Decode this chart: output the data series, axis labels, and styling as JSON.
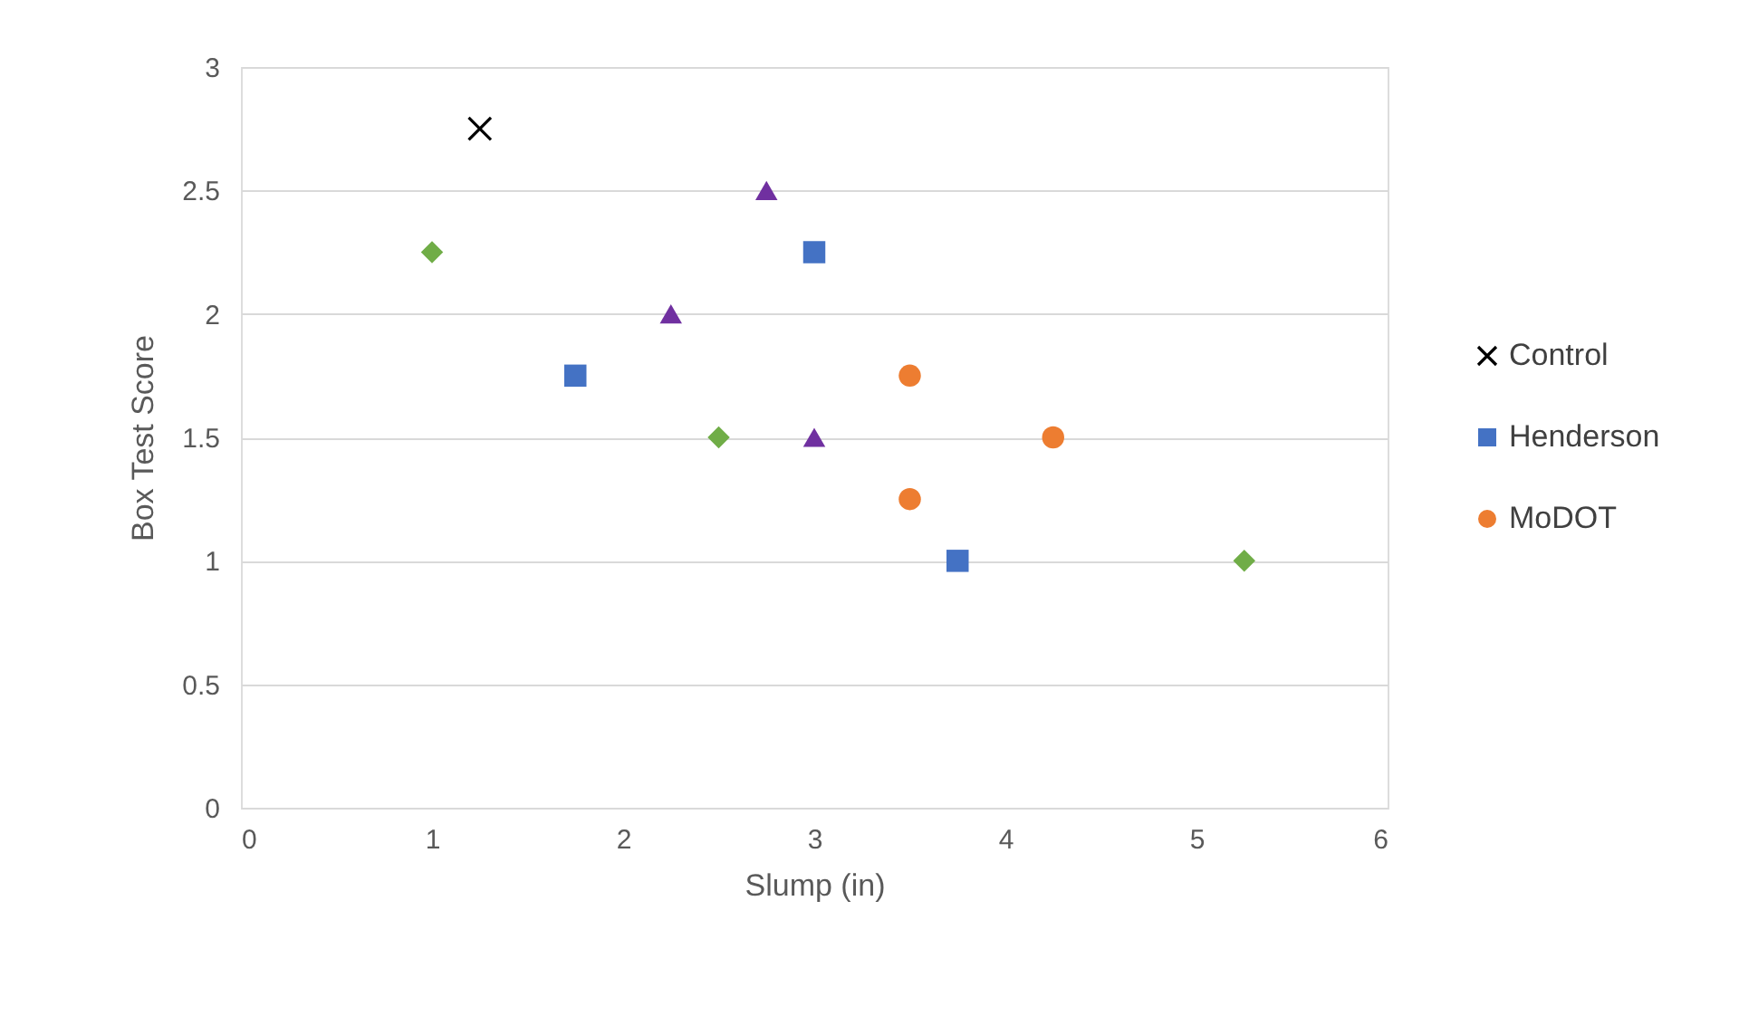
{
  "chart_data": {
    "type": "scatter",
    "xlabel": "Slump (in)",
    "ylabel": "Box Test Score",
    "xlim": [
      0,
      6
    ],
    "xticks": [
      0,
      1,
      2,
      3,
      4,
      5,
      6
    ],
    "ylim": [
      0,
      3
    ],
    "yticks": [
      0,
      0.5,
      1,
      1.5,
      2,
      2.5,
      3
    ],
    "grid": "y",
    "legend": "right",
    "series": [
      {
        "name": "Control",
        "color": "#000000",
        "marker": "cross",
        "x": [
          1.25
        ],
        "values": [
          2.75
        ]
      },
      {
        "name": "Henderson",
        "color": "#4472c4",
        "marker": "square",
        "x": [
          1.75,
          3,
          3.75
        ],
        "values": [
          1.75,
          2.25,
          1
        ]
      },
      {
        "color": "#70ad47",
        "marker": "diamond",
        "x": [
          1,
          2.5,
          5.25
        ],
        "values": [
          2.25,
          1.5,
          1
        ]
      },
      {
        "color": "#7030a0",
        "marker": "triangle",
        "x": [
          2.25,
          2.75,
          3
        ],
        "values": [
          2,
          2.5,
          1.5
        ]
      },
      {
        "name": "MoDOT",
        "color": "#ed7d31",
        "marker": "circle",
        "x": [
          3.5,
          3.5,
          4.25
        ],
        "values": [
          1.75,
          1.25,
          1.5
        ]
      }
    ]
  }
}
